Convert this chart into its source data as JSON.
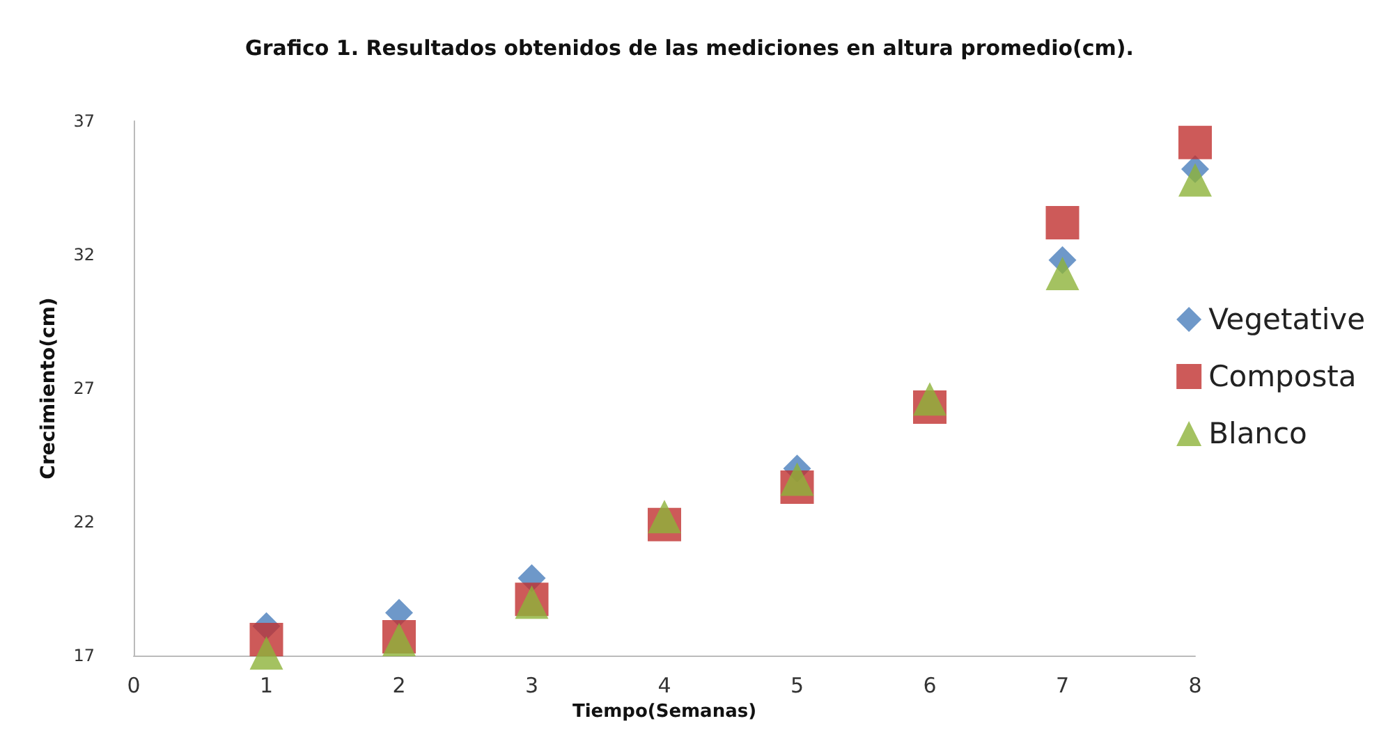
{
  "chart_data": {
    "type": "scatter",
    "title": "Grafico 1. Resultados obtenidos de las mediciones en altura promedio(cm).",
    "xlabel": "Tiempo(Semanas)",
    "ylabel": "Crecimiento(cm)",
    "x": [
      1,
      2,
      3,
      4,
      5,
      6,
      7,
      8
    ],
    "series": [
      {
        "name": "Vegetative",
        "color": "#4a7ebb",
        "marker": "diamond",
        "values": [
          18.1,
          18.6,
          19.9,
          null,
          24.0,
          null,
          31.8,
          35.2
        ]
      },
      {
        "name": "Composta",
        "color": "#c0312f",
        "marker": "square",
        "values": [
          17.6,
          17.7,
          19.1,
          21.9,
          23.3,
          26.3,
          33.2,
          36.2
        ]
      },
      {
        "name": "Blanco",
        "color": "#8db33a",
        "marker": "triangle",
        "values": [
          17.1,
          17.6,
          19.0,
          22.2,
          23.6,
          26.6,
          31.3,
          34.8
        ]
      }
    ],
    "xlim": [
      0,
      8
    ],
    "xticks": [
      0,
      1,
      2,
      3,
      4,
      5,
      6,
      7,
      8
    ],
    "ylim": [
      17,
      37
    ],
    "yticks": [
      17,
      22,
      27,
      32,
      37
    ],
    "grid": false,
    "legend": "right"
  }
}
